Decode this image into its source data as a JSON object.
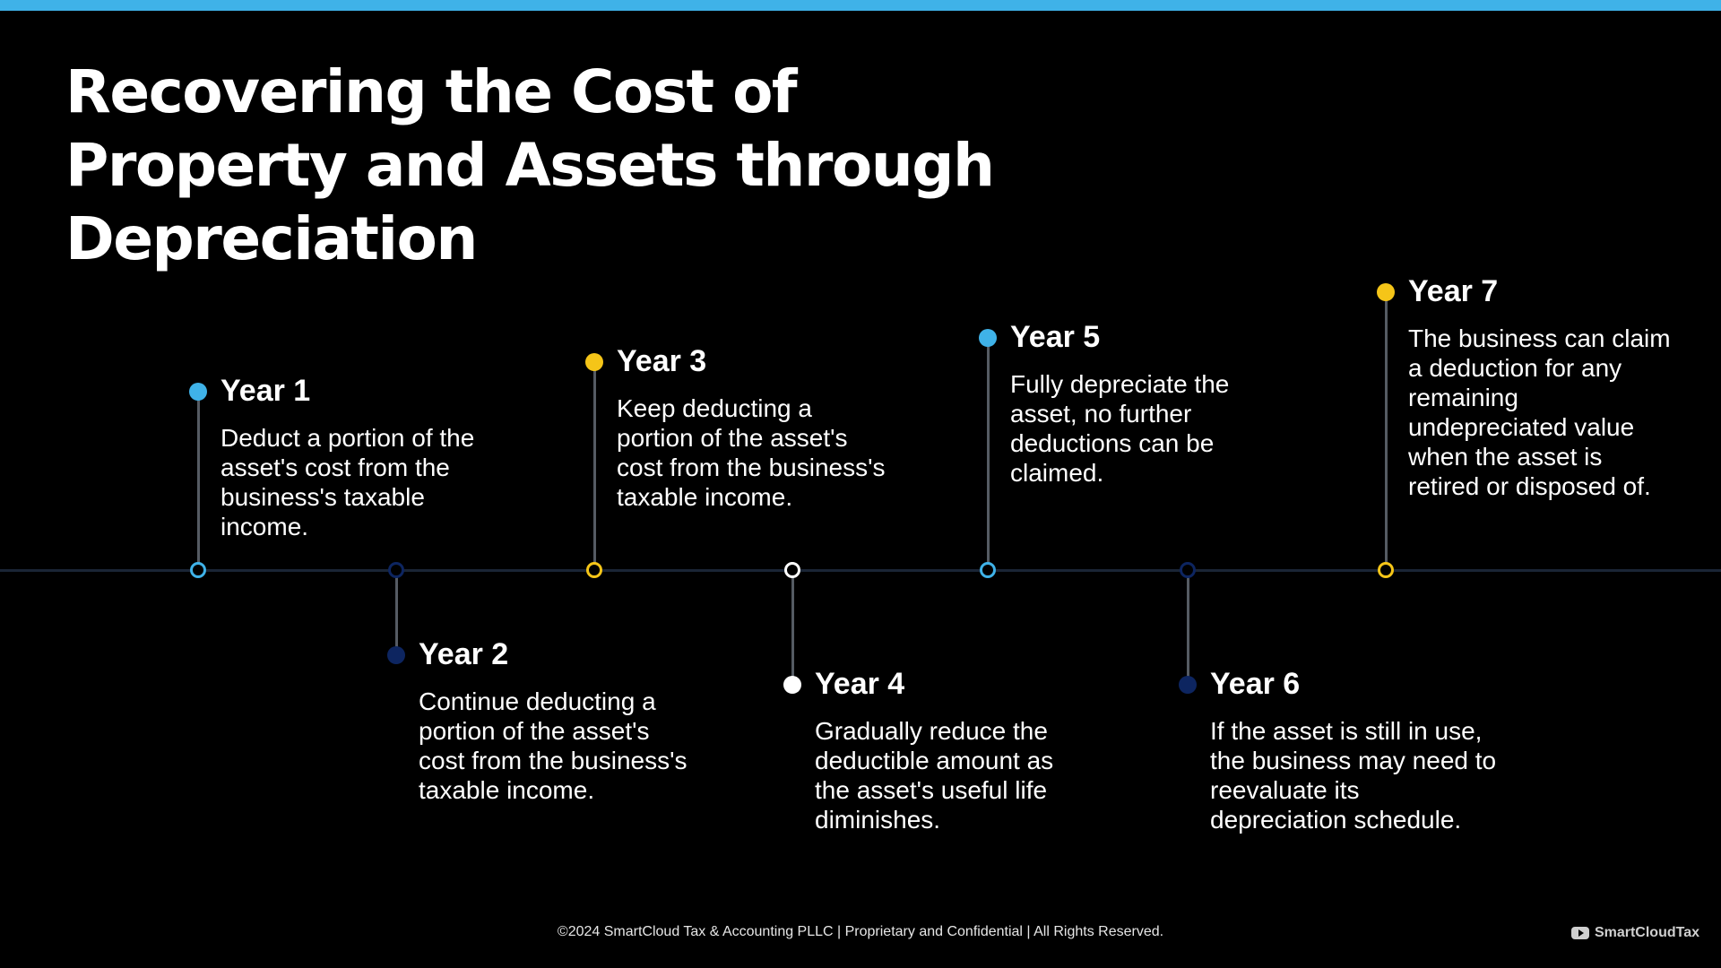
{
  "title": "Recovering the Cost of Property and Assets through Depreciation",
  "colors": {
    "accent_blue": "#3fb2e8",
    "accent_navy": "#0d2560",
    "accent_yellow": "#f5c518",
    "white": "#ffffff"
  },
  "steps": [
    {
      "year": "Year 1",
      "description": "Deduct a portion of the asset's cost from the business's taxable income.",
      "color": "#3fb2e8"
    },
    {
      "year": "Year 2",
      "description": "Continue deducting a portion of the asset's cost from the business's taxable income.",
      "color": "#0d2560"
    },
    {
      "year": "Year 3",
      "description": "Keep deducting a portion of the asset's cost from the business's taxable income.",
      "color": "#f5c518"
    },
    {
      "year": "Year 4",
      "description": "Gradually reduce the deductible amount as the asset's useful life diminishes.",
      "color": "#ffffff"
    },
    {
      "year": "Year 5",
      "description": "Fully depreciate the asset, no further deductions can be claimed.",
      "color": "#3fb2e8"
    },
    {
      "year": "Year 6",
      "description": "If the asset is still in use, the business may need to reevaluate its depreciation schedule.",
      "color": "#0d2560"
    },
    {
      "year": "Year 7",
      "description": "The business can claim a deduction for any remaining undepreciated value when the asset is retired or disposed of.",
      "color": "#f5c518"
    }
  ],
  "footer": {
    "copyright": "©2024 SmartCloud Tax & Accounting PLLC | Proprietary and Confidential | All Rights Reserved.",
    "brand": "SmartCloudTax",
    "brand_icon": "youtube-icon"
  }
}
